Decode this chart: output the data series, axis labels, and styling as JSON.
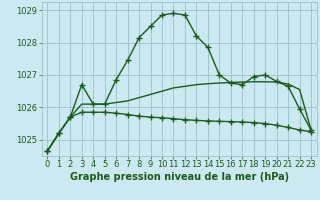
{
  "x": [
    0,
    1,
    2,
    3,
    4,
    5,
    6,
    7,
    8,
    9,
    10,
    11,
    12,
    13,
    14,
    15,
    16,
    17,
    18,
    19,
    20,
    21,
    22,
    23
  ],
  "line1": [
    1024.65,
    1025.2,
    1025.7,
    1026.7,
    1026.1,
    1026.1,
    1026.85,
    1027.45,
    1028.15,
    1028.5,
    1028.85,
    1028.9,
    1028.85,
    1028.2,
    1027.85,
    1027.0,
    1026.75,
    1026.7,
    1026.95,
    1027.0,
    1026.8,
    1026.65,
    1025.95,
    1025.3
  ],
  "line2": [
    1024.65,
    1025.2,
    1025.7,
    1025.85,
    1025.85,
    1025.85,
    1025.82,
    1025.78,
    1025.73,
    1025.7,
    1025.68,
    1025.65,
    1025.62,
    1025.6,
    1025.58,
    1025.57,
    1025.56,
    1025.55,
    1025.53,
    1025.5,
    1025.45,
    1025.38,
    1025.3,
    1025.25
  ],
  "line3": [
    1024.65,
    1025.2,
    1025.7,
    1026.1,
    1026.1,
    1026.1,
    1026.15,
    1026.2,
    1026.3,
    1026.4,
    1026.5,
    1026.6,
    1026.65,
    1026.7,
    1026.73,
    1026.75,
    1026.77,
    1026.78,
    1026.79,
    1026.79,
    1026.78,
    1026.72,
    1026.55,
    1025.3
  ],
  "bg_color": "#cce8f0",
  "grid_color": "#9bbfcc",
  "line_color": "#1a5c1a",
  "xlabel": "Graphe pression niveau de la mer (hPa)",
  "ylim": [
    1024.5,
    1029.25
  ],
  "yticks": [
    1025,
    1026,
    1027,
    1028,
    1029
  ],
  "xticks": [
    0,
    1,
    2,
    3,
    4,
    5,
    6,
    7,
    8,
    9,
    10,
    11,
    12,
    13,
    14,
    15,
    16,
    17,
    18,
    19,
    20,
    21,
    22,
    23
  ],
  "marker": "+",
  "markersize": 4,
  "linewidth": 1.0,
  "xlabel_fontsize": 7.0,
  "tick_fontsize": 6.0
}
